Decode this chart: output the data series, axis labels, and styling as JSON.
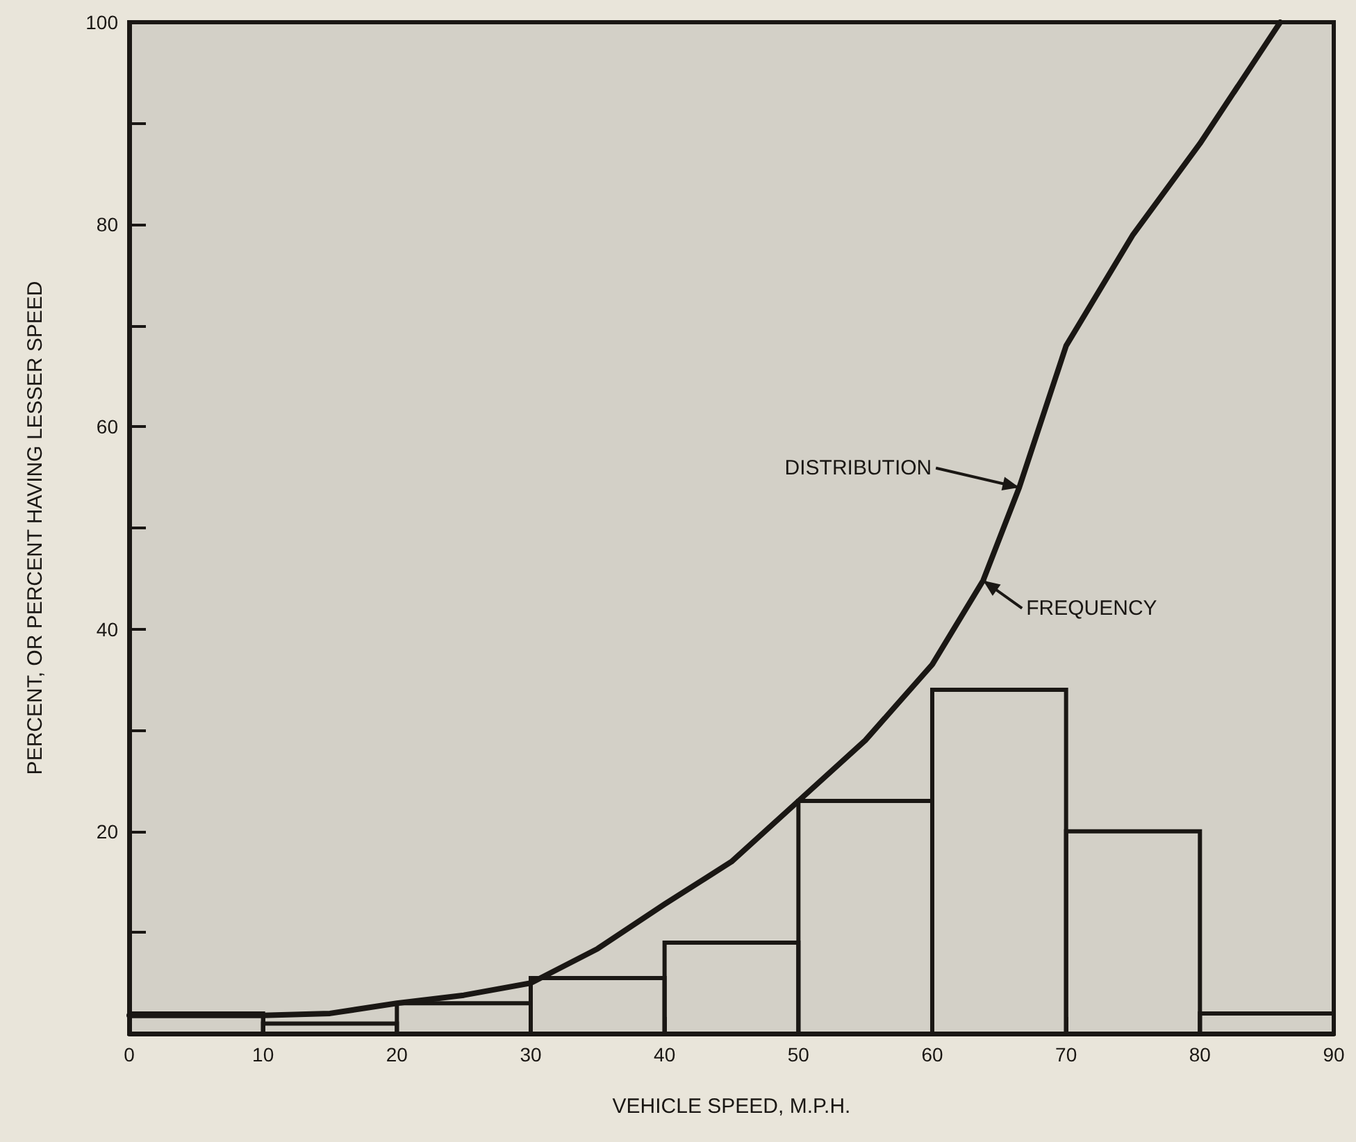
{
  "chart_data": {
    "type": "histogram",
    "xlabel": "VEHICLE SPEED, M.P.H.",
    "ylabel": "PERCENT, OR PERCENT HAVING LESSER SPEED",
    "bins": [
      0,
      10,
      20,
      30,
      40,
      50,
      60,
      70,
      80,
      90
    ],
    "values": [
      2,
      1,
      3,
      5.5,
      9,
      23,
      34,
      20,
      2
    ],
    "color": "#1a1714",
    "series": [
      {
        "type": "line",
        "color": "#1a1714",
        "x": [
          0,
          10,
          15,
          20,
          25,
          30,
          35,
          40,
          45,
          50,
          55,
          60,
          63.8,
          66.5,
          70,
          75,
          80,
          85,
          86
        ],
        "values": [
          1.8,
          1.8,
          2,
          3,
          3.8,
          5,
          8.4,
          12.8,
          17,
          23,
          29,
          36.5,
          44.8,
          54,
          68,
          79,
          88,
          98,
          100
        ]
      }
    ],
    "annotations": [
      {
        "text": "DISTRIBUTION",
        "x": 66.5,
        "y": 54
      },
      {
        "text": "FREQUENCY",
        "x": 63.8,
        "y": 44.8
      }
    ],
    "xlim": [
      0,
      90
    ],
    "xticks": [
      0,
      10,
      20,
      30,
      40,
      50,
      60,
      70,
      80,
      90
    ],
    "ylim": [
      0,
      100
    ],
    "yticks": [
      {
        "value": 10,
        "label": null
      },
      20,
      {
        "value": 30,
        "label": null
      },
      40,
      {
        "value": 50,
        "label": null
      },
      60,
      {
        "value": 70,
        "label": null
      },
      80,
      {
        "value": 90,
        "label": null
      },
      100
    ],
    "grid": false,
    "legend": false,
    "marker": "none",
    "line_style": "solid"
  }
}
